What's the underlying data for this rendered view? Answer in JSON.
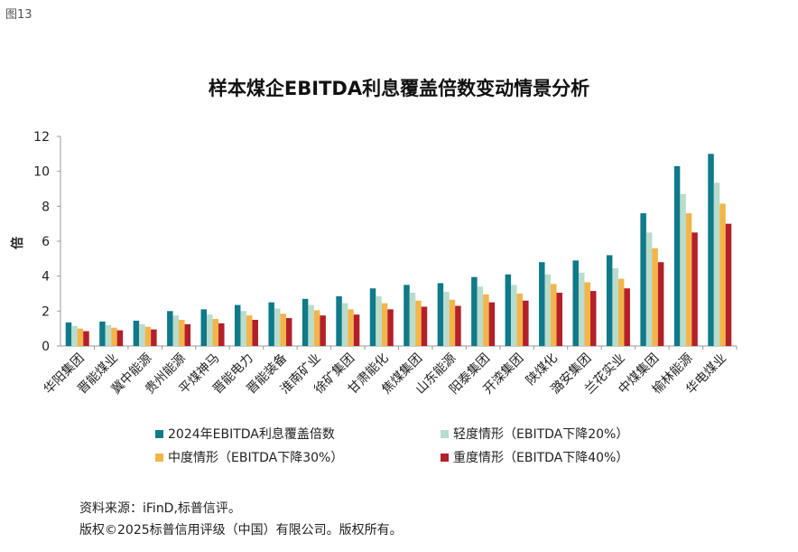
{
  "figure_label": "图13",
  "footer": {
    "source": "资料来源：iFinD,标普信评。",
    "copyright": "版权©2025标普信用评级（中国）有限公司。版权所有。"
  },
  "colors": {
    "series": [
      "#0f7a89",
      "#b9dccc",
      "#f3b54a",
      "#b3202a"
    ],
    "axis": "#999999",
    "text": "#222222"
  },
  "chart_data": {
    "type": "bar",
    "title": "样本煤企EBITDA利息覆盖倍数变动情景分析",
    "ylabel": "倍",
    "xlabel": "",
    "ylim": [
      0,
      12
    ],
    "yticks": [
      "0",
      "2",
      "4",
      "6",
      "8",
      "10",
      "12"
    ],
    "grid": false,
    "legend_position": "bottom",
    "categories": [
      "华阳集团",
      "晋能煤业",
      "冀中能源",
      "贵州能源",
      "平煤神马",
      "晋能电力",
      "晋能装备",
      "淮南矿业",
      "徐矿集团",
      "甘肃能化",
      "焦煤集团",
      "山东能源",
      "阳泰集团",
      "开滦集团",
      "陕煤化",
      "潞安集团",
      "兰花实业",
      "中煤集团",
      "榆林能源",
      "华电煤业"
    ],
    "series": [
      {
        "name": "2024年EBITDA利息覆盖倍数",
        "values": [
          1.35,
          1.4,
          1.45,
          2.0,
          2.1,
          2.35,
          2.5,
          2.7,
          2.85,
          3.3,
          3.5,
          3.6,
          3.95,
          4.1,
          4.8,
          4.9,
          5.2,
          7.6,
          10.3,
          11.0
        ]
      },
      {
        "name": "轻度情形（EBITDA下降20%）",
        "values": [
          1.15,
          1.2,
          1.25,
          1.75,
          1.8,
          2.0,
          2.15,
          2.35,
          2.45,
          2.85,
          3.05,
          3.1,
          3.4,
          3.5,
          4.1,
          4.2,
          4.45,
          6.5,
          8.7,
          9.35
        ]
      },
      {
        "name": "中度情形（EBITDA下降30%）",
        "values": [
          1.0,
          1.05,
          1.1,
          1.5,
          1.55,
          1.75,
          1.85,
          2.05,
          2.1,
          2.45,
          2.6,
          2.65,
          2.95,
          3.0,
          3.55,
          3.65,
          3.85,
          5.6,
          7.6,
          8.15
        ]
      },
      {
        "name": "重度情形（EBITDA下降40%）",
        "values": [
          0.85,
          0.9,
          0.95,
          1.25,
          1.3,
          1.5,
          1.6,
          1.75,
          1.8,
          2.1,
          2.25,
          2.3,
          2.5,
          2.6,
          3.05,
          3.15,
          3.3,
          4.8,
          6.5,
          7.0
        ]
      }
    ]
  }
}
